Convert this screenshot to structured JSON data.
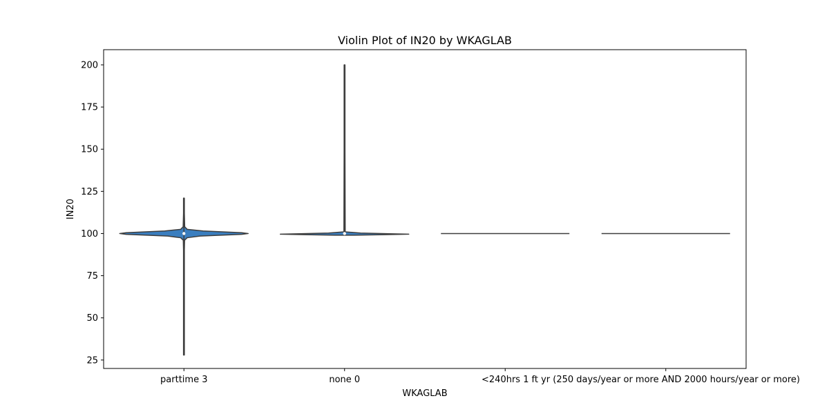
{
  "chart_data": {
    "type": "violin",
    "title": "Violin Plot of IN20 by WKAGLAB",
    "xlabel": "WKAGLAB",
    "ylabel": "IN20",
    "categories": [
      "parttime 3",
      "none 0",
      "<240hrs 1",
      "ft yr (250 days/year or more AND 2000 hours/year or more)"
    ],
    "ylim": [
      20,
      209
    ],
    "yticks": [
      25,
      50,
      75,
      100,
      125,
      150,
      175,
      200
    ],
    "grid": false,
    "fill_color": "#3a7ebf",
    "line_color": "#3d3d3d",
    "violins": [
      {
        "category": "parttime 3",
        "min": 28,
        "max": 121,
        "q1": 99.6,
        "median": 100,
        "q3": 100.6,
        "profile": [
          [
            28,
            0.004
          ],
          [
            60,
            0.004
          ],
          [
            90,
            0.006
          ],
          [
            96,
            0.01
          ],
          [
            97.5,
            0.05
          ],
          [
            98.5,
            0.25
          ],
          [
            99.5,
            0.9
          ],
          [
            100,
            1.0
          ],
          [
            100.5,
            0.9
          ],
          [
            101.5,
            0.3
          ],
          [
            102.5,
            0.05
          ],
          [
            104,
            0.012
          ],
          [
            112,
            0.006
          ],
          [
            121,
            0.004
          ]
        ]
      },
      {
        "category": "none 0",
        "min": 99,
        "max": 200,
        "q1": 99.8,
        "median": 100,
        "q3": 100.1,
        "profile": [
          [
            99,
            0.15
          ],
          [
            99.3,
            0.6
          ],
          [
            99.6,
            1.0
          ],
          [
            99.9,
            0.7
          ],
          [
            100.3,
            0.25
          ],
          [
            101,
            0.01
          ],
          [
            150,
            0.004
          ],
          [
            200,
            0.004
          ]
        ]
      },
      {
        "category": "<240hrs 1",
        "min": 100,
        "max": 100,
        "q1": 100,
        "median": 100,
        "q3": 100,
        "profile": []
      },
      {
        "category": "ft yr (250 days/year or more AND 2000 hours/year or more)",
        "min": 100,
        "max": 100,
        "q1": 100,
        "median": 100,
        "q3": 100,
        "profile": []
      }
    ]
  }
}
